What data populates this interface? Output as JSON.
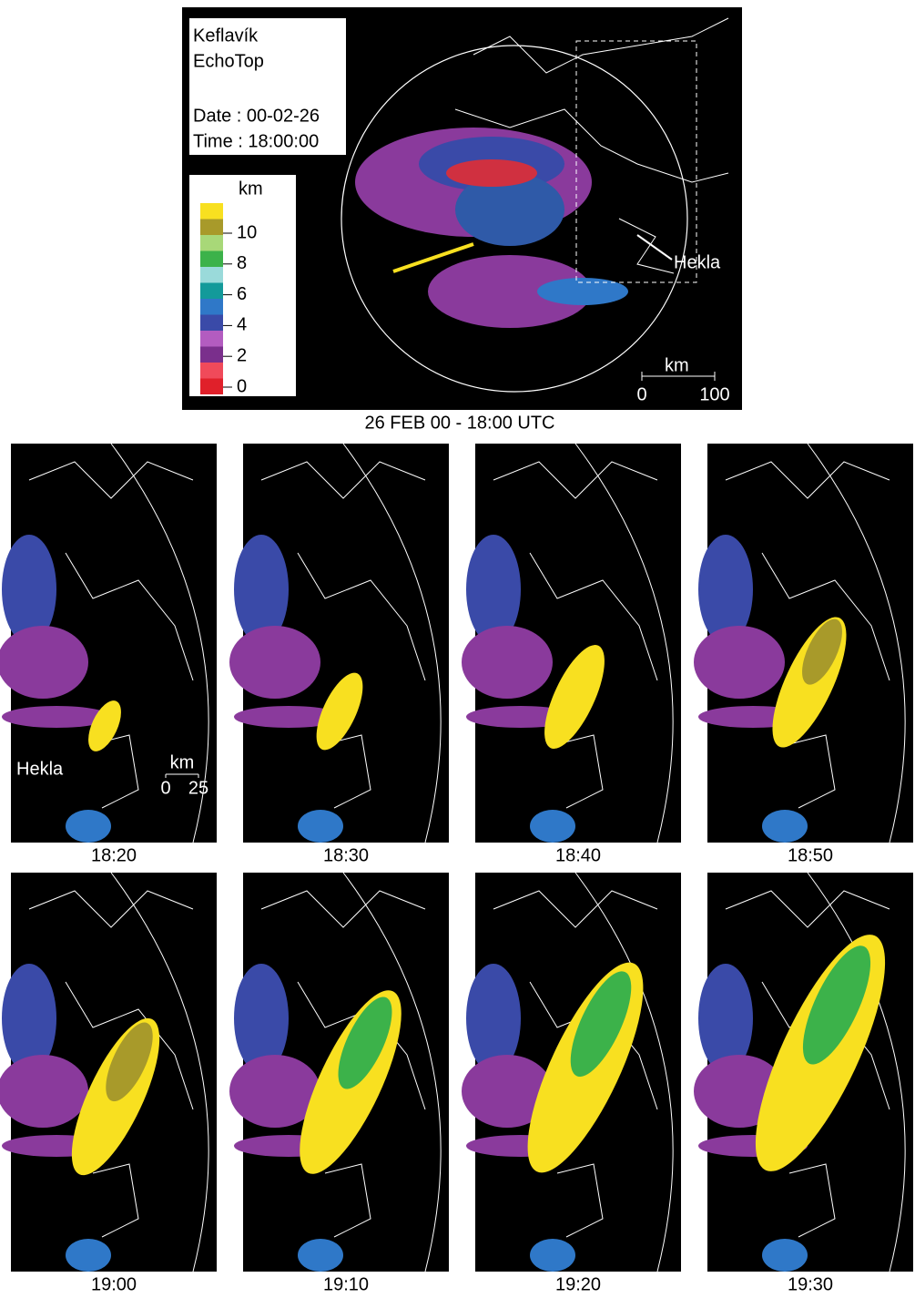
{
  "top_panel": {
    "station": "Keflavík",
    "product": "EchoTop",
    "date": "Date : 00-02-26",
    "time": "Time : 18:00:00",
    "legend": {
      "unit": "km",
      "colors": [
        "#e0202a",
        "#f04a5a",
        "#7a2f8c",
        "#b35cc0",
        "#3a4aa8",
        "#2f78c8",
        "#139a9a",
        "#9adada",
        "#3cb24a",
        "#a8d878",
        "#a89a2a",
        "#f8e020"
      ],
      "ticks": [
        0,
        2,
        4,
        6,
        8,
        10
      ]
    },
    "annotation": "Hekla",
    "scale": {
      "unit": "km",
      "ticks": [
        0,
        100
      ]
    }
  },
  "title": "26 FEB 00 - 18:00 UTC",
  "first_panel": {
    "annotation": "Hekla",
    "scale_unit": "km",
    "scale_ticks": [
      0,
      25
    ]
  },
  "panels": [
    {
      "time": "18:20"
    },
    {
      "time": "18:30"
    },
    {
      "time": "18:40"
    },
    {
      "time": "18:50"
    },
    {
      "time": "19:00"
    },
    {
      "time": "19:10"
    },
    {
      "time": "19:20"
    },
    {
      "time": "19:30"
    }
  ]
}
